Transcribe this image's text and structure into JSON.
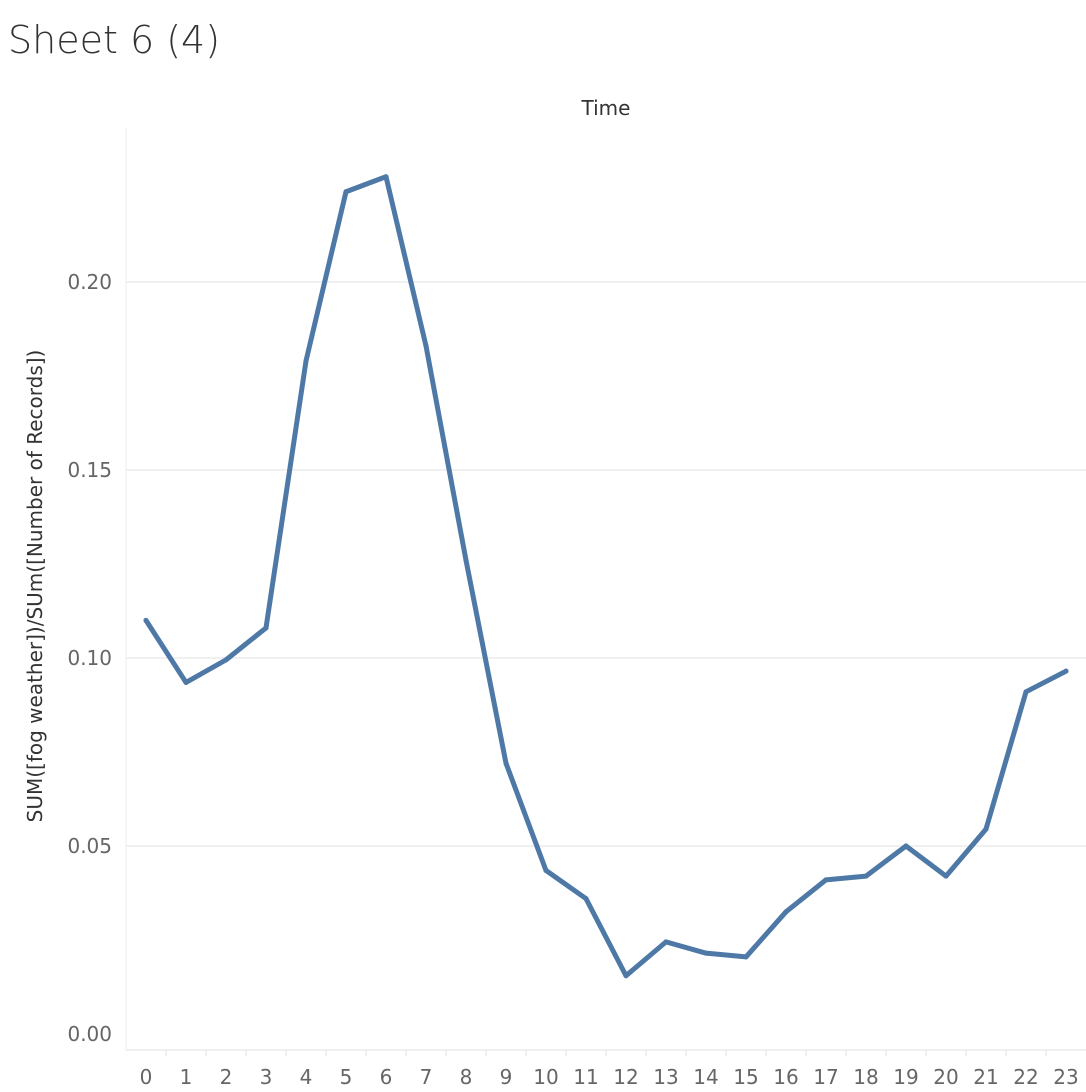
{
  "sheet_title": "Sheet 6 (4)",
  "colors": {
    "line": "#4e79a7",
    "grid": "#ececec",
    "axis_text": "#666666",
    "title_text": "#333333"
  },
  "chart_data": {
    "type": "line",
    "title": "",
    "xlabel": "Time",
    "ylabel": "SUM([fog weather])/SUm([Number of Records])",
    "x": [
      0,
      1,
      2,
      3,
      4,
      5,
      6,
      7,
      8,
      9,
      10,
      11,
      12,
      13,
      14,
      15,
      16,
      17,
      18,
      19,
      20,
      21,
      22,
      23
    ],
    "series": [
      {
        "values": [
          0.11,
          0.0935,
          0.0995,
          0.108,
          0.179,
          0.224,
          0.228,
          0.183,
          0.126,
          0.072,
          0.0435,
          0.036,
          0.0155,
          0.0245,
          0.0215,
          0.0205,
          0.0325,
          0.041,
          0.042,
          0.05,
          0.042,
          0.0545,
          0.091,
          0.0965
        ]
      }
    ],
    "y_ticks": [
      "0.00",
      "0.05",
      "0.10",
      "0.15",
      "0.20"
    ],
    "x_ticks": [
      "0",
      "1",
      "2",
      "3",
      "4",
      "5",
      "6",
      "7",
      "8",
      "9",
      "10",
      "11",
      "12",
      "13",
      "14",
      "15",
      "16",
      "17",
      "18",
      "19",
      "20",
      "21",
      "22",
      "23"
    ],
    "ylim": [
      0,
      0.235
    ],
    "grid": true,
    "xlabel_position": "top"
  }
}
